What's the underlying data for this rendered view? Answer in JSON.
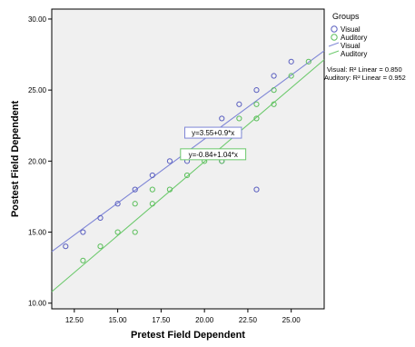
{
  "chart_data": {
    "type": "scatter",
    "xlabel": "Pretest Field Dependent",
    "ylabel": "Postest Field Dependent",
    "xlim": [
      11.2,
      26.9
    ],
    "ylim": [
      9.6,
      30.7
    ],
    "xticks": [
      12.5,
      15.0,
      17.5,
      20.0,
      22.5,
      25.0
    ],
    "xtick_labels": [
      "12.50",
      "15.00",
      "17.50",
      "20.00",
      "22.50",
      "25.00"
    ],
    "yticks": [
      10,
      15,
      20,
      25,
      30
    ],
    "ytick_labels": [
      "10.00",
      "15.00",
      "20.00",
      "25.00",
      "30.00"
    ],
    "plot_background": "#f0f0f0",
    "grid": false,
    "legend_placement": "right",
    "legend": {
      "title": "Groups",
      "marker_entries": [
        "Visual",
        "Auditory"
      ],
      "line_entries": [
        "Visual",
        "Auditory"
      ],
      "r2_lines": [
        "Visual: R² Linear = 0.850",
        "Auditory: R² Linear = 0.952"
      ]
    },
    "series": [
      {
        "name": "Visual",
        "color": "#5a5fc0",
        "line_color": "#7f86d6",
        "fit": {
          "intercept": 3.55,
          "slope": 0.9,
          "label": "y=3.55+0.9*x",
          "label_at_x": 20.5
        },
        "points": [
          {
            "x": 12,
            "y": 14
          },
          {
            "x": 13,
            "y": 15
          },
          {
            "x": 14,
            "y": 16
          },
          {
            "x": 15,
            "y": 17
          },
          {
            "x": 16,
            "y": 18
          },
          {
            "x": 17,
            "y": 19
          },
          {
            "x": 18,
            "y": 20
          },
          {
            "x": 19,
            "y": 20
          },
          {
            "x": 20,
            "y": 22
          },
          {
            "x": 21,
            "y": 23
          },
          {
            "x": 22,
            "y": 24
          },
          {
            "x": 23,
            "y": 25
          },
          {
            "x": 24,
            "y": 26
          },
          {
            "x": 25,
            "y": 27
          },
          {
            "x": 23,
            "y": 18
          },
          {
            "x": 21,
            "y": 20
          }
        ]
      },
      {
        "name": "Auditory",
        "color": "#5cbf5c",
        "line_color": "#6cc96c",
        "fit": {
          "intercept": -0.84,
          "slope": 1.04,
          "label": "y=-0.84+1.04*x",
          "label_at_x": 20.5
        },
        "points": [
          {
            "x": 13,
            "y": 13
          },
          {
            "x": 14,
            "y": 14
          },
          {
            "x": 15,
            "y": 15
          },
          {
            "x": 16,
            "y": 15
          },
          {
            "x": 16,
            "y": 17
          },
          {
            "x": 17,
            "y": 17
          },
          {
            "x": 17,
            "y": 18
          },
          {
            "x": 18,
            "y": 18
          },
          {
            "x": 19,
            "y": 19
          },
          {
            "x": 20,
            "y": 20
          },
          {
            "x": 21,
            "y": 20
          },
          {
            "x": 21,
            "y": 22
          },
          {
            "x": 22,
            "y": 22
          },
          {
            "x": 22,
            "y": 23
          },
          {
            "x": 23,
            "y": 23
          },
          {
            "x": 23,
            "y": 24
          },
          {
            "x": 24,
            "y": 24
          },
          {
            "x": 24,
            "y": 25
          },
          {
            "x": 25,
            "y": 26
          },
          {
            "x": 26,
            "y": 27
          }
        ]
      }
    ]
  }
}
